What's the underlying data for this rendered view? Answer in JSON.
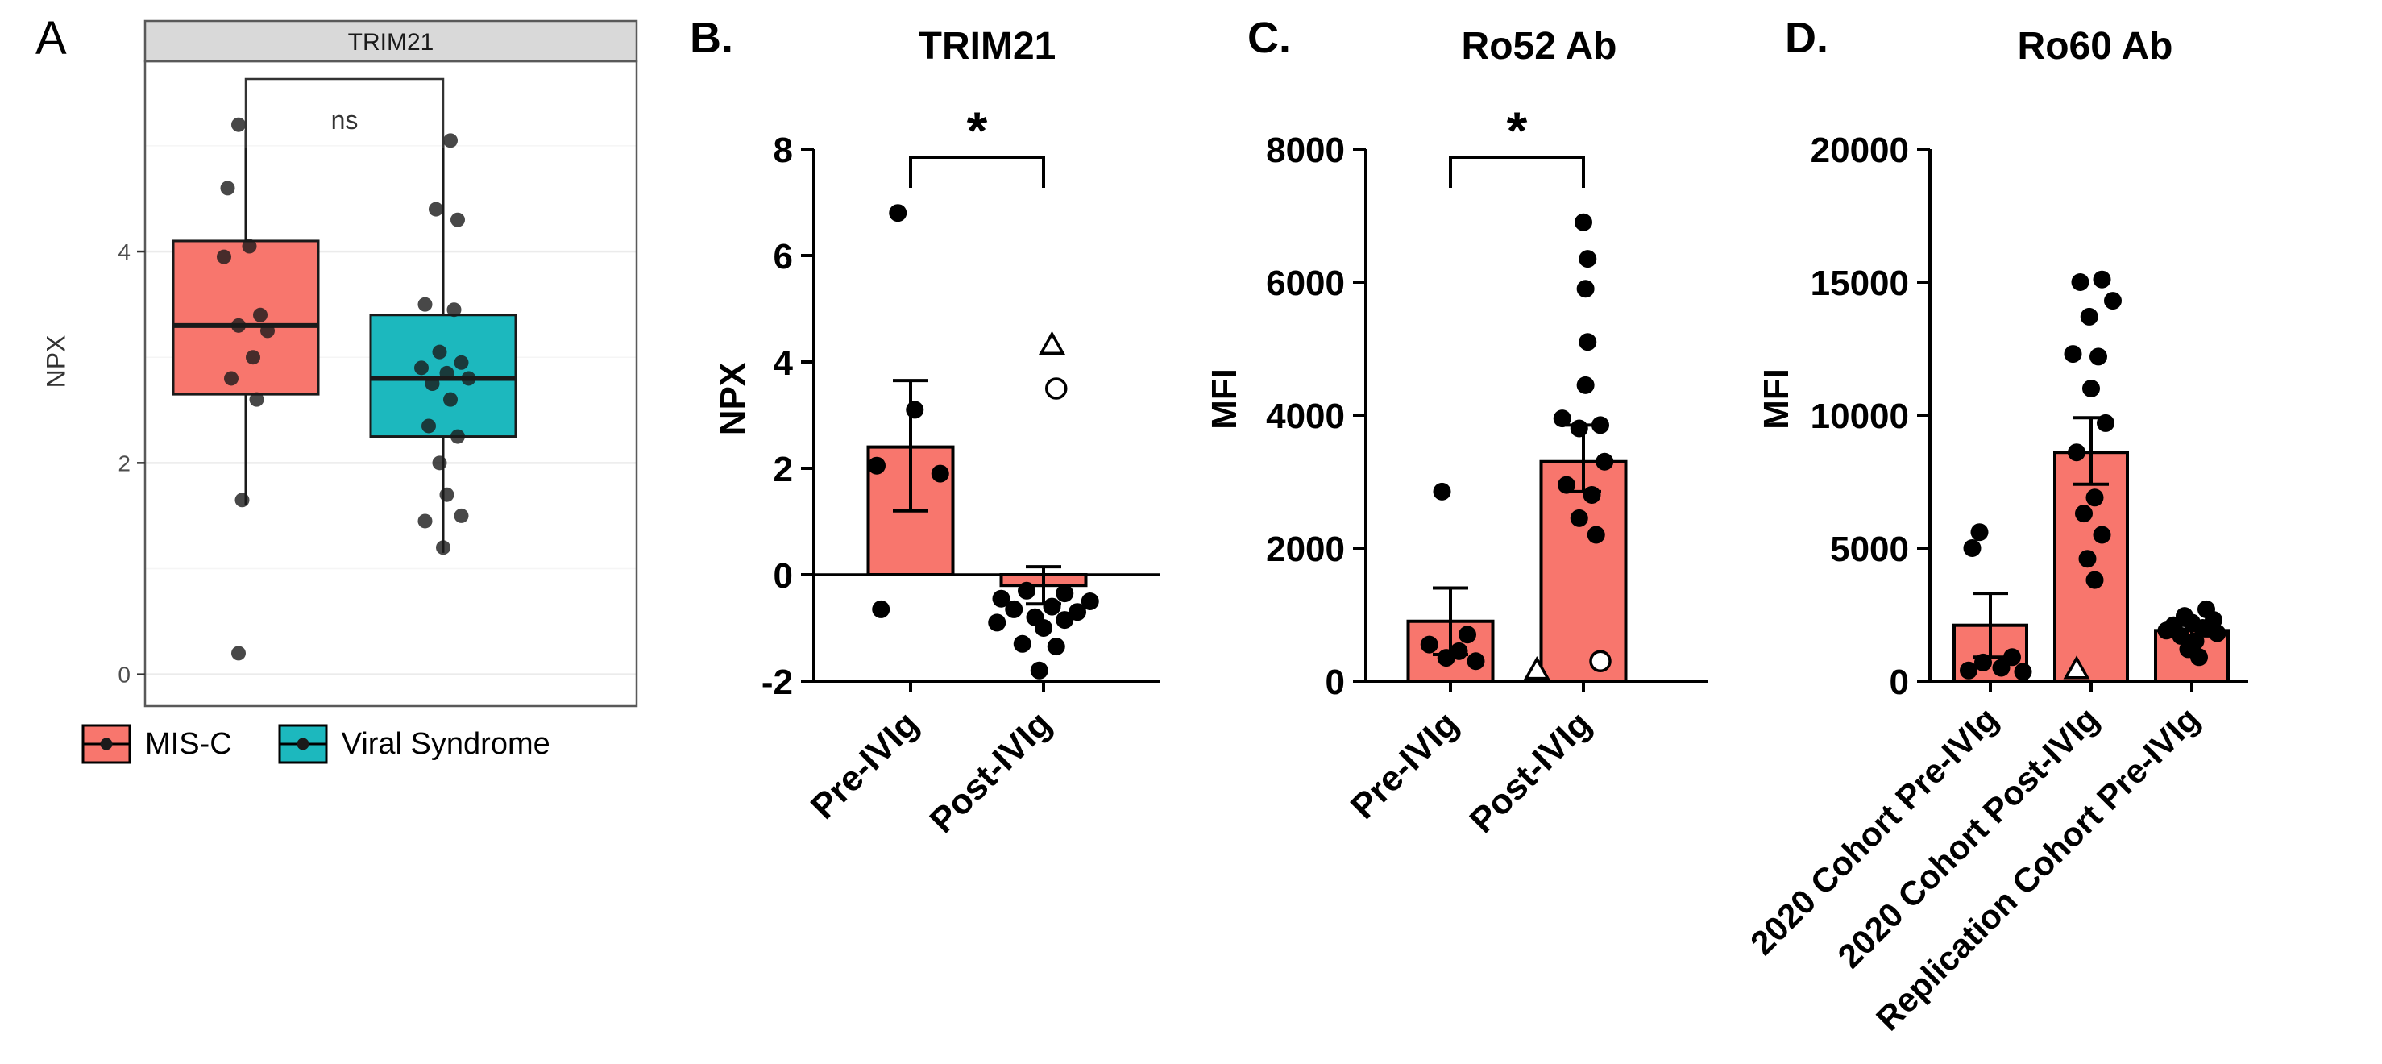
{
  "panels": {
    "a": {
      "label": "A",
      "ylabel": "NPX",
      "legend": [
        {
          "label": "MIS-C",
          "color": "#F8766D"
        },
        {
          "label": "Viral Syndrome",
          "color": "#1CB8BE"
        }
      ]
    },
    "b": {
      "label": "B.",
      "title": "TRIM21",
      "ylabel": "NPX"
    },
    "c": {
      "label": "C.",
      "title": "Ro52 Ab",
      "ylabel": "MFI"
    },
    "d": {
      "label": "D.",
      "title": "Ro60 Ab",
      "ylabel": "MFI"
    }
  },
  "chart_data": [
    {
      "type": "box",
      "panel": "A",
      "title": "TRIM21",
      "ylabel": "NPX",
      "ylim": [
        -0.3,
        5.8
      ],
      "yticks": [
        0,
        2,
        4
      ],
      "annotation": "ns",
      "legend_position": "bottom",
      "groups": [
        {
          "name": "MIS-C",
          "color": "#F8766D",
          "whisker_low": 1.6,
          "q1": 2.65,
          "median": 3.3,
          "q3": 4.1,
          "whisker_high": 5.15,
          "points": [
            {
              "v": 5.2,
              "dx": -0.1
            },
            {
              "v": 4.6,
              "dx": -0.25
            },
            {
              "v": 4.05,
              "dx": 0.05
            },
            {
              "v": 3.95,
              "dx": -0.3
            },
            {
              "v": 3.4,
              "dx": 0.2
            },
            {
              "v": 3.3,
              "dx": -0.1
            },
            {
              "v": 3.25,
              "dx": 0.3
            },
            {
              "v": 3.0,
              "dx": 0.1
            },
            {
              "v": 2.8,
              "dx": -0.2
            },
            {
              "v": 2.6,
              "dx": 0.15
            },
            {
              "v": 1.65,
              "dx": -0.05
            },
            {
              "v": 0.2,
              "dx": -0.1
            }
          ]
        },
        {
          "name": "Viral Syndrome",
          "color": "#1CB8BE",
          "whisker_low": 1.15,
          "q1": 2.25,
          "median": 2.8,
          "q3": 3.4,
          "whisker_high": 5.05,
          "points": [
            {
              "v": 5.05,
              "dx": 0.1
            },
            {
              "v": 4.4,
              "dx": -0.1
            },
            {
              "v": 4.3,
              "dx": 0.2
            },
            {
              "v": 3.5,
              "dx": -0.25
            },
            {
              "v": 3.45,
              "dx": 0.15
            },
            {
              "v": 3.05,
              "dx": -0.05
            },
            {
              "v": 2.95,
              "dx": 0.25
            },
            {
              "v": 2.9,
              "dx": -0.3
            },
            {
              "v": 2.85,
              "dx": 0.05
            },
            {
              "v": 2.8,
              "dx": 0.35
            },
            {
              "v": 2.75,
              "dx": -0.15
            },
            {
              "v": 2.6,
              "dx": 0.1
            },
            {
              "v": 2.35,
              "dx": -0.2
            },
            {
              "v": 2.25,
              "dx": 0.2
            },
            {
              "v": 2.0,
              "dx": -0.05
            },
            {
              "v": 1.7,
              "dx": 0.05
            },
            {
              "v": 1.5,
              "dx": 0.25
            },
            {
              "v": 1.45,
              "dx": -0.25
            },
            {
              "v": 1.2,
              "dx": 0.0
            }
          ]
        }
      ]
    },
    {
      "type": "bar",
      "panel": "B",
      "title": "TRIM21",
      "ylabel": "NPX",
      "ylim": [
        -2,
        8
      ],
      "yticks": [
        -2,
        0,
        2,
        4,
        6,
        8
      ],
      "significance": "*",
      "bar_color": "#F8766D",
      "categories": [
        "Pre-IVIg",
        "Post-IVIg"
      ],
      "bars": [
        {
          "category": "Pre-IVIg",
          "mean": 2.4,
          "sem_low": 1.2,
          "sem_high": 3.65,
          "points": [
            {
              "v": 6.8,
              "dx": -0.3
            },
            {
              "v": 3.1,
              "dx": 0.1
            },
            {
              "v": 2.05,
              "dx": -0.8
            },
            {
              "v": 1.9,
              "dx": 0.7
            },
            {
              "v": -0.65,
              "dx": -0.7
            }
          ]
        },
        {
          "category": "Post-IVIg",
          "mean": -0.2,
          "sem_low": -0.55,
          "sem_high": 0.15,
          "points": [
            {
              "v": 4.3,
              "dx": 0.2,
              "s": "triangle-open"
            },
            {
              "v": 3.5,
              "dx": 0.3,
              "s": "circle-open"
            },
            {
              "v": -0.3,
              "dx": -0.4
            },
            {
              "v": -0.35,
              "dx": 0.5
            },
            {
              "v": -0.45,
              "dx": -1.0
            },
            {
              "v": -0.5,
              "dx": 1.1
            },
            {
              "v": -0.6,
              "dx": 0.2
            },
            {
              "v": -0.65,
              "dx": -0.7
            },
            {
              "v": -0.7,
              "dx": 0.8
            },
            {
              "v": -0.8,
              "dx": -0.2
            },
            {
              "v": -0.85,
              "dx": 0.5
            },
            {
              "v": -0.9,
              "dx": -1.1
            },
            {
              "v": -1.0,
              "dx": 0.0
            },
            {
              "v": -1.3,
              "dx": -0.5
            },
            {
              "v": -1.35,
              "dx": 0.3
            },
            {
              "v": -1.8,
              "dx": -0.1
            }
          ]
        }
      ]
    },
    {
      "type": "bar",
      "panel": "C",
      "title": "Ro52 Ab",
      "ylabel": "MFI",
      "ylim": [
        0,
        8000
      ],
      "yticks": [
        0,
        2000,
        4000,
        6000,
        8000
      ],
      "significance": "*",
      "bar_color": "#F8766D",
      "categories": [
        "Pre-IVIg",
        "Post-IVIg"
      ],
      "bars": [
        {
          "category": "Pre-IVIg",
          "mean": 900,
          "sem_low": 400,
          "sem_high": 1400,
          "points": [
            {
              "v": 2850,
              "dx": -0.2
            },
            {
              "v": 700,
              "dx": 0.4
            },
            {
              "v": 550,
              "dx": -0.5
            },
            {
              "v": 450,
              "dx": 0.2
            },
            {
              "v": 350,
              "dx": -0.1
            },
            {
              "v": 300,
              "dx": 0.6
            }
          ]
        },
        {
          "category": "Post-IVIg",
          "mean": 3300,
          "sem_low": 2850,
          "sem_high": 3850,
          "points": [
            {
              "v": 6900,
              "dx": 0.0
            },
            {
              "v": 6350,
              "dx": 0.1
            },
            {
              "v": 5900,
              "dx": 0.05
            },
            {
              "v": 5100,
              "dx": 0.1
            },
            {
              "v": 4450,
              "dx": 0.05
            },
            {
              "v": 3950,
              "dx": -0.5
            },
            {
              "v": 3850,
              "dx": 0.4
            },
            {
              "v": 3800,
              "dx": -0.1
            },
            {
              "v": 3300,
              "dx": 0.5
            },
            {
              "v": 2950,
              "dx": -0.4
            },
            {
              "v": 2800,
              "dx": 0.2
            },
            {
              "v": 2450,
              "dx": -0.1
            },
            {
              "v": 2200,
              "dx": 0.3
            },
            {
              "v": 150,
              "dx": -1.1,
              "s": "triangle-open"
            },
            {
              "v": 300,
              "dx": 0.4,
              "s": "circle-open"
            }
          ]
        }
      ]
    },
    {
      "type": "bar",
      "panel": "D",
      "title": "Ro60 Ab",
      "ylabel": "MFI",
      "ylim": [
        0,
        20000
      ],
      "yticks": [
        0,
        5000,
        10000,
        15000,
        20000
      ],
      "significance": "",
      "bar_color": "#F8766D",
      "categories": [
        "2020 Cohort Pre-IVIg",
        "2020 Cohort Post-IVIg",
        "Replication Cohort Pre-IVIg"
      ],
      "bars": [
        {
          "category": "2020 Cohort Pre-IVIg",
          "mean": 2100,
          "sem_low": 900,
          "sem_high": 3300,
          "points": [
            {
              "v": 5600,
              "dx": -0.3
            },
            {
              "v": 5000,
              "dx": -0.5
            },
            {
              "v": 900,
              "dx": 0.6
            },
            {
              "v": 700,
              "dx": -0.2
            },
            {
              "v": 500,
              "dx": 0.3
            },
            {
              "v": 400,
              "dx": -0.6
            },
            {
              "v": 350,
              "dx": 0.9
            }
          ]
        },
        {
          "category": "2020 Cohort Post-IVIg",
          "mean": 8600,
          "sem_low": 7400,
          "sem_high": 9900,
          "points": [
            {
              "v": 15100,
              "dx": 0.3
            },
            {
              "v": 15000,
              "dx": -0.3
            },
            {
              "v": 14300,
              "dx": 0.6
            },
            {
              "v": 13700,
              "dx": -0.05
            },
            {
              "v": 12300,
              "dx": -0.5
            },
            {
              "v": 12200,
              "dx": 0.2
            },
            {
              "v": 11000,
              "dx": 0.0
            },
            {
              "v": 9700,
              "dx": 0.4
            },
            {
              "v": 8600,
              "dx": -0.4
            },
            {
              "v": 6900,
              "dx": 0.1
            },
            {
              "v": 6300,
              "dx": -0.2
            },
            {
              "v": 5500,
              "dx": 0.3
            },
            {
              "v": 4600,
              "dx": -0.1
            },
            {
              "v": 3800,
              "dx": 0.1
            },
            {
              "v": 400,
              "dx": -0.4,
              "s": "triangle-open"
            }
          ]
        },
        {
          "category": "Replication Cohort Pre-IVIg",
          "mean": 1900,
          "sem_low": 1700,
          "sem_high": 2100,
          "points": [
            {
              "v": 2700,
              "dx": 0.4
            },
            {
              "v": 2450,
              "dx": -0.2
            },
            {
              "v": 2300,
              "dx": 0.6
            },
            {
              "v": 2200,
              "dx": 0.0
            },
            {
              "v": 2100,
              "dx": -0.5
            },
            {
              "v": 2000,
              "dx": 0.3
            },
            {
              "v": 1900,
              "dx": -0.7
            },
            {
              "v": 1800,
              "dx": 0.7
            },
            {
              "v": 1700,
              "dx": -0.3
            },
            {
              "v": 1500,
              "dx": 0.1
            },
            {
              "v": 1200,
              "dx": -0.1
            },
            {
              "v": 900,
              "dx": 0.2
            }
          ]
        }
      ]
    }
  ]
}
